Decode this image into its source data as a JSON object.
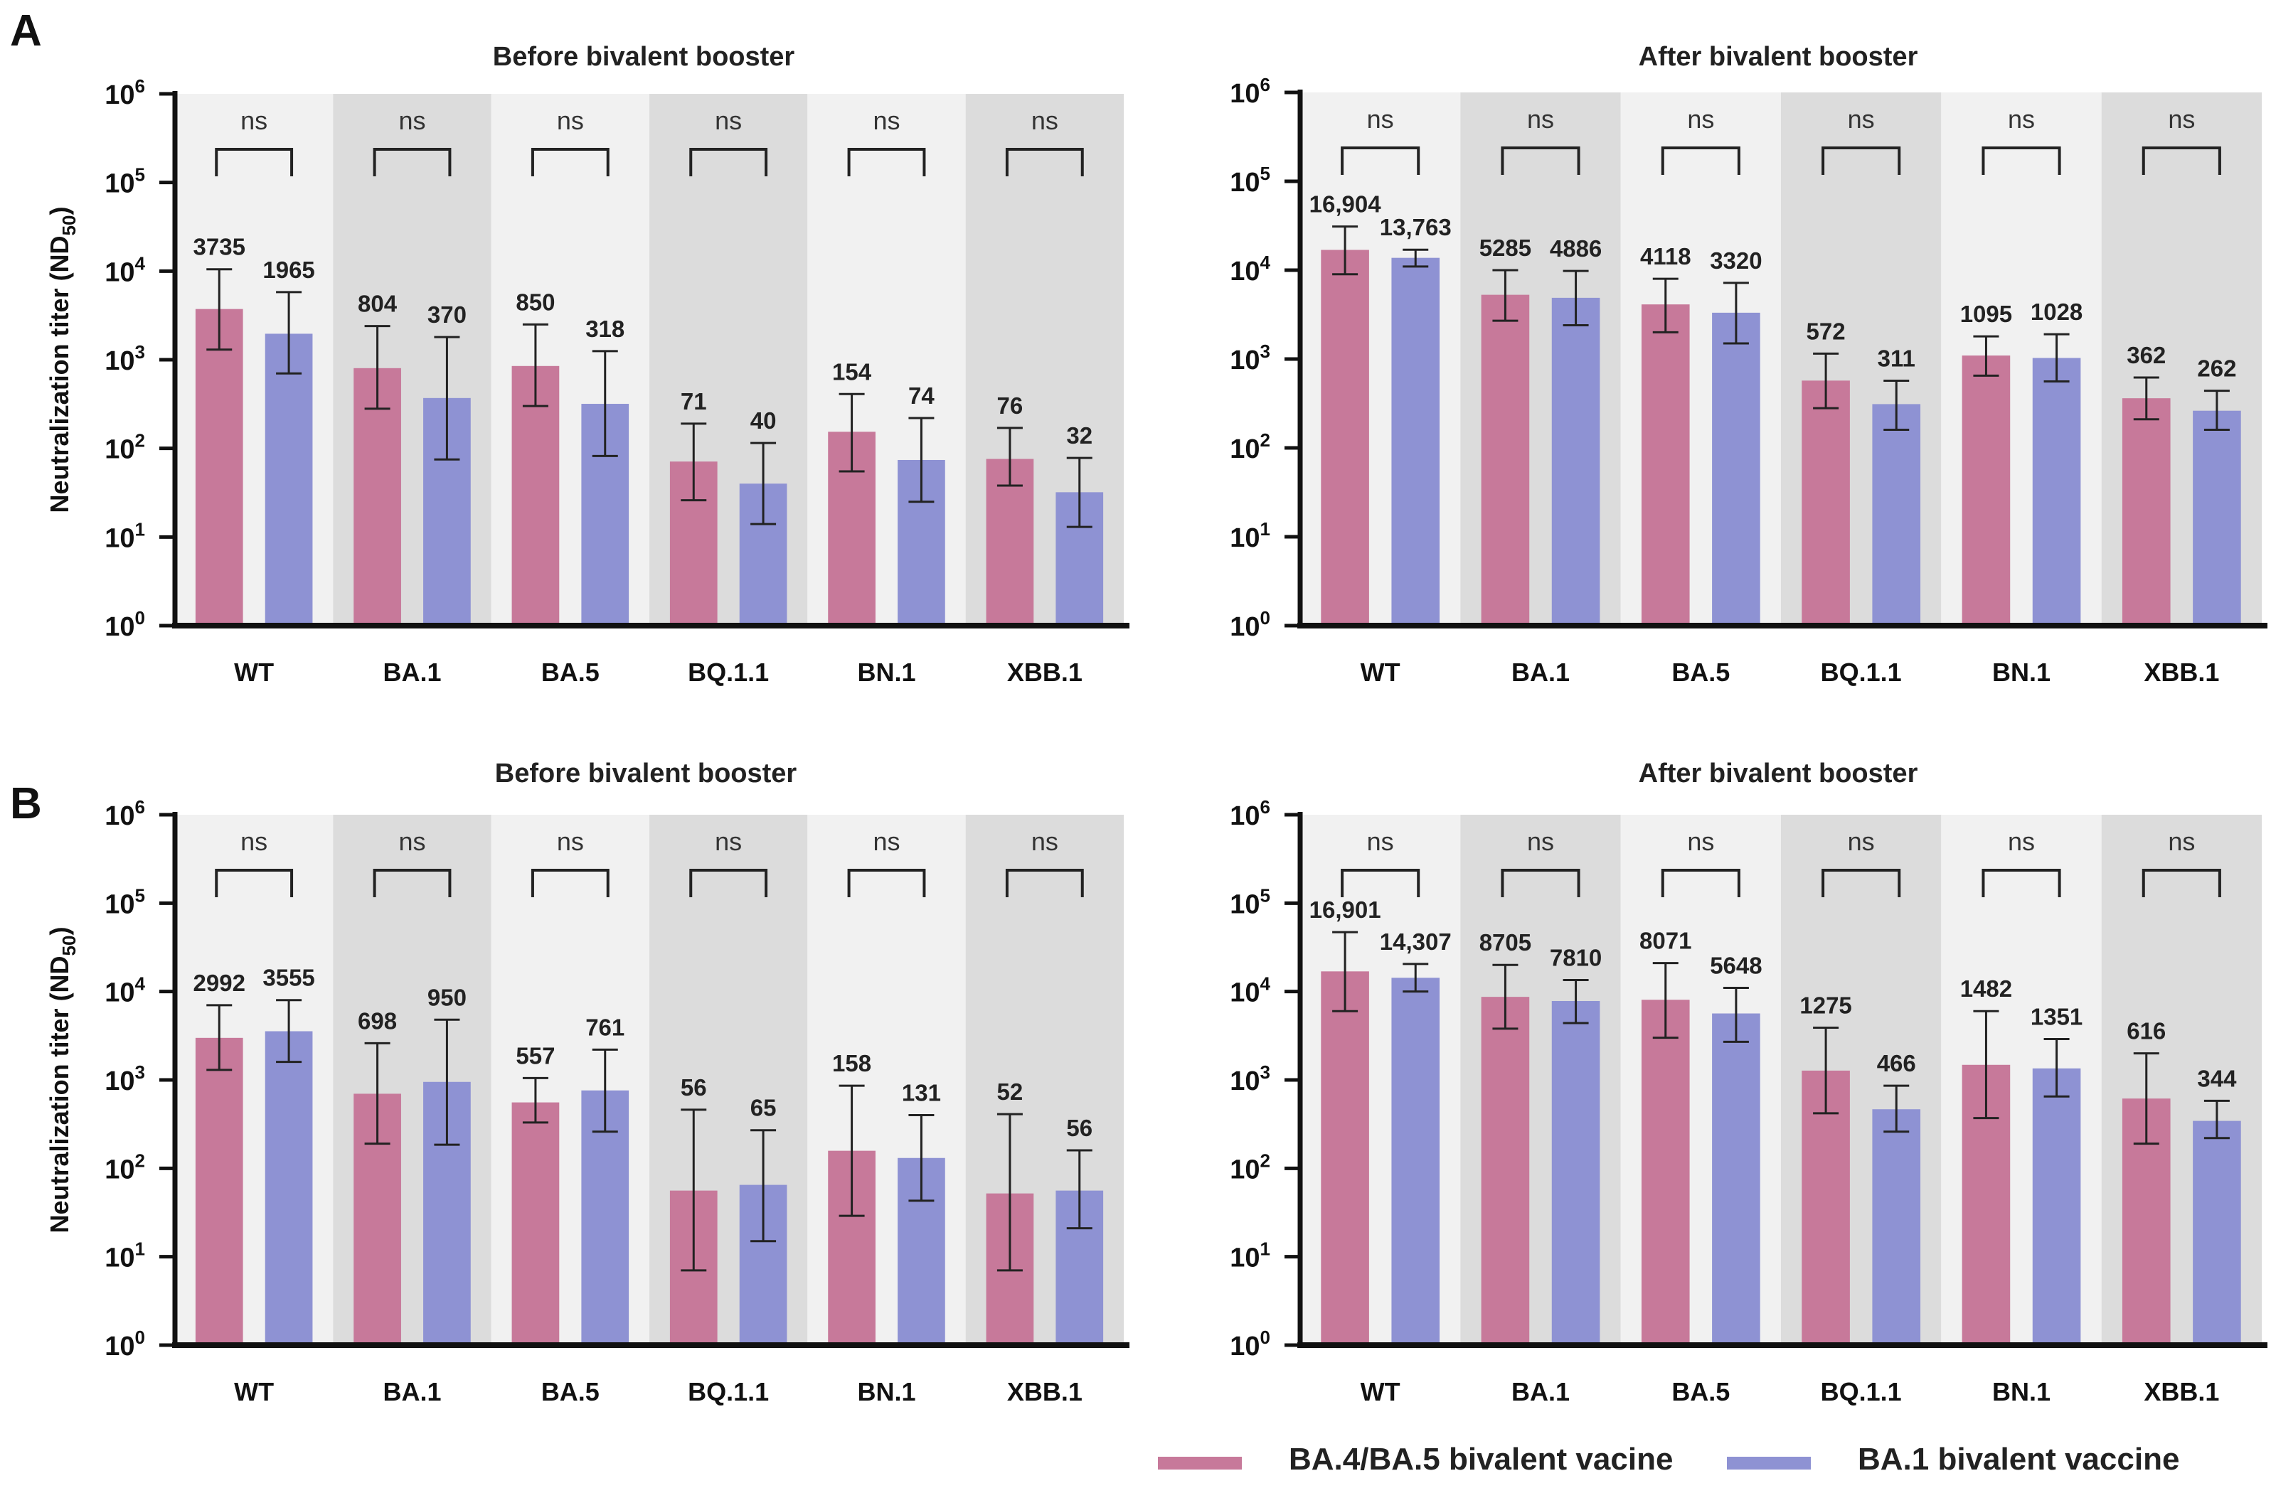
{
  "figure": {
    "panel_letters": [
      "A",
      "B"
    ],
    "colors": {
      "series_a": "#c7799a",
      "series_b": "#8e92d3",
      "band_light": "#f1f1f1",
      "band_dark": "#dcdcdc",
      "axis": "#111111"
    },
    "legend": [
      {
        "label": "BA.4/BA.5 bivalent vacine",
        "color": "#c7799a"
      },
      {
        "label": "BA.1 bivalent vaccine",
        "color": "#8e92d3"
      }
    ]
  },
  "chart_data": [
    {
      "panel": "A",
      "type": "bar",
      "scale": "log10",
      "title": "Before bivalent booster",
      "ylabel": "Neutralization titer (ND50)",
      "ylim": [
        1,
        1000000
      ],
      "yticks": [
        "10^0",
        "10^1",
        "10^2",
        "10^3",
        "10^4",
        "10^5",
        "10^6"
      ],
      "categories": [
        "WT",
        "BA.1",
        "BA.5",
        "BQ.1.1",
        "BN.1",
        "XBB.1"
      ],
      "significance": [
        "ns",
        "ns",
        "ns",
        "ns",
        "ns",
        "ns"
      ],
      "series": [
        {
          "name": "BA.4/BA.5 bivalent vacine",
          "values": [
            3735,
            804,
            850,
            71,
            154,
            76
          ],
          "labels": [
            "3735",
            "804",
            "850",
            "71",
            "154",
            "76"
          ],
          "err_low": [
            1300,
            280,
            300,
            26,
            55,
            38
          ],
          "err_high": [
            10500,
            2400,
            2500,
            190,
            410,
            170
          ]
        },
        {
          "name": "BA.1 bivalent vaccine",
          "values": [
            1965,
            370,
            318,
            40,
            74,
            32
          ],
          "labels": [
            "1965",
            "370",
            "318",
            "40",
            "74",
            "32"
          ],
          "err_low": [
            700,
            75,
            82,
            14,
            25,
            13
          ],
          "err_high": [
            5800,
            1800,
            1250,
            115,
            220,
            78
          ]
        }
      ]
    },
    {
      "panel": "A",
      "type": "bar",
      "scale": "log10",
      "title": "After bivalent booster",
      "ylabel": "",
      "ylim": [
        1,
        1000000
      ],
      "yticks": [
        "10^0",
        "10^1",
        "10^2",
        "10^3",
        "10^4",
        "10^5",
        "10^6"
      ],
      "categories": [
        "WT",
        "BA.1",
        "BA.5",
        "BQ.1.1",
        "BN.1",
        "XBB.1"
      ],
      "significance": [
        "ns",
        "ns",
        "ns",
        "ns",
        "ns",
        "ns"
      ],
      "series": [
        {
          "name": "BA.4/BA.5 bivalent vacine",
          "values": [
            16904,
            5285,
            4118,
            572,
            1095,
            362
          ],
          "labels": [
            "16,904",
            "5285",
            "4118",
            "572",
            "1095",
            "362"
          ],
          "err_low": [
            9000,
            2700,
            2000,
            280,
            650,
            210
          ],
          "err_high": [
            31000,
            10000,
            8000,
            1150,
            1800,
            620
          ]
        },
        {
          "name": "BA.1 bivalent vaccine",
          "values": [
            13763,
            4886,
            3320,
            311,
            1028,
            262
          ],
          "labels": [
            "13,763",
            "4886",
            "3320",
            "311",
            "1028",
            "262"
          ],
          "err_low": [
            11000,
            2400,
            1500,
            160,
            560,
            160
          ],
          "err_high": [
            17000,
            9800,
            7200,
            570,
            1900,
            440
          ]
        }
      ]
    },
    {
      "panel": "B",
      "type": "bar",
      "scale": "log10",
      "title": "Before bivalent booster",
      "ylabel": "Neutralization titer (ND50)",
      "ylim": [
        1,
        1000000
      ],
      "yticks": [
        "10^0",
        "10^1",
        "10^2",
        "10^3",
        "10^4",
        "10^5",
        "10^6"
      ],
      "categories": [
        "WT",
        "BA.1",
        "BA.5",
        "BQ.1.1",
        "BN.1",
        "XBB.1"
      ],
      "significance": [
        "ns",
        "ns",
        "ns",
        "ns",
        "ns",
        "ns"
      ],
      "series": [
        {
          "name": "BA.4/BA.5 bivalent vacine",
          "values": [
            2992,
            698,
            557,
            56,
            158,
            52
          ],
          "labels": [
            "2992",
            "698",
            "557",
            "56",
            "158",
            "52"
          ],
          "err_low": [
            1300,
            190,
            330,
            7,
            29,
            7
          ],
          "err_high": [
            7000,
            2600,
            1050,
            460,
            860,
            410
          ]
        },
        {
          "name": "BA.1 bivalent vaccine",
          "values": [
            3555,
            950,
            761,
            65,
            131,
            56
          ],
          "labels": [
            "3555",
            "950",
            "761",
            "65",
            "131",
            "56"
          ],
          "err_low": [
            1600,
            185,
            260,
            15,
            43,
            21
          ],
          "err_high": [
            8000,
            4800,
            2200,
            270,
            400,
            160
          ]
        }
      ]
    },
    {
      "panel": "B",
      "type": "bar",
      "scale": "log10",
      "title": "After bivalent booster",
      "ylabel": "",
      "ylim": [
        1,
        1000000
      ],
      "yticks": [
        "10^0",
        "10^1",
        "10^2",
        "10^3",
        "10^4",
        "10^5",
        "10^6"
      ],
      "categories": [
        "WT",
        "BA.1",
        "BA.5",
        "BQ.1.1",
        "BN.1",
        "XBB.1"
      ],
      "significance": [
        "ns",
        "ns",
        "ns",
        "ns",
        "ns",
        "ns"
      ],
      "series": [
        {
          "name": "BA.4/BA.5 bivalent vacine",
          "values": [
            16901,
            8705,
            8071,
            1275,
            1482,
            616
          ],
          "labels": [
            "16,901",
            "8705",
            "8071",
            "1275",
            "1482",
            "616"
          ],
          "err_low": [
            6000,
            3800,
            3000,
            420,
            370,
            190
          ],
          "err_high": [
            47000,
            20000,
            21000,
            3900,
            6000,
            2000
          ]
        },
        {
          "name": "BA.1 bivalent vaccine",
          "values": [
            14307,
            7810,
            5648,
            466,
            1351,
            344
          ],
          "labels": [
            "14,307",
            "7810",
            "5648",
            "466",
            "1351",
            "344"
          ],
          "err_low": [
            10000,
            4400,
            2700,
            260,
            650,
            220
          ],
          "err_high": [
            20500,
            13500,
            11000,
            860,
            2900,
            580
          ]
        }
      ]
    }
  ]
}
